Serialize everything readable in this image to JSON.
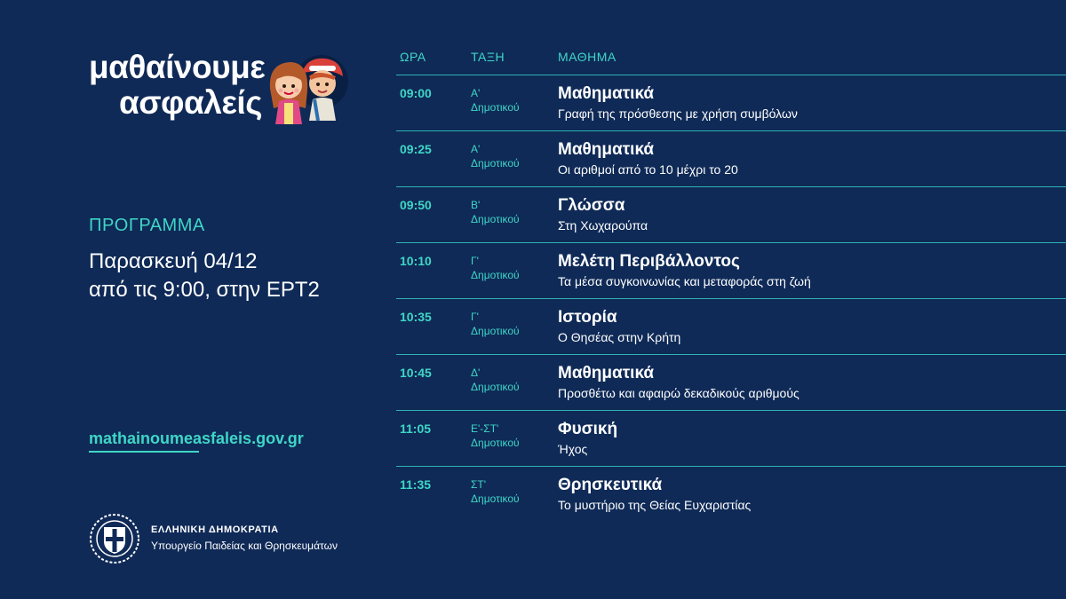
{
  "brand": {
    "logo_line1": "μαθαίνουμε",
    "logo_line2": "ασφαλείς",
    "accent_color": "#3fd6c6",
    "background_color": "#0f2a57"
  },
  "program": {
    "label": "ΠΡΟΓΡΑΜΜΑ",
    "date_line1": "Παρασκευή 04/12",
    "date_line2": "από τις 9:00, στην ΕΡΤ2"
  },
  "website": "mathainoumeasfaleis.gov.gr",
  "government": {
    "title": "ΕΛΛΗΝΙΚΗ ΔΗΜΟΚΡΑΤΙΑ",
    "ministry": "Υπουργείο Παιδείας και Θρησκευμάτων"
  },
  "schedule": {
    "headers": {
      "time": "ΩΡΑ",
      "grade": "ΤΑΞΗ",
      "subject": "ΜΑΘΗΜΑ"
    },
    "rows": [
      {
        "time": "09:00",
        "grade1": "Α'",
        "grade2": "Δημοτικού",
        "subject": "Μαθηματικά",
        "topic": "Γραφή της πρόσθεσης με χρήση συμβόλων"
      },
      {
        "time": "09:25",
        "grade1": "Α'",
        "grade2": "Δημοτικού",
        "subject": "Μαθηματικά",
        "topic": "Οι αριθμοί από το 10 μέχρι το 20"
      },
      {
        "time": "09:50",
        "grade1": "Β'",
        "grade2": "Δημοτικού",
        "subject": "Γλώσσα",
        "topic": "Στη Χωχαρούπα"
      },
      {
        "time": "10:10",
        "grade1": "Γ'",
        "grade2": "Δημοτικού",
        "subject": "Μελέτη Περιβάλλοντος",
        "topic": "Τα μέσα συγκοινωνίας και μεταφοράς στη ζωή"
      },
      {
        "time": "10:35",
        "grade1": "Γ'",
        "grade2": "Δημοτικού",
        "subject": "Ιστορία",
        "topic": "Ο Θησέας στην Κρήτη"
      },
      {
        "time": "10:45",
        "grade1": "Δ'",
        "grade2": "Δημοτικού",
        "subject": "Μαθηματικά",
        "topic": "Προσθέτω και αφαιρώ δεκαδικούς αριθμούς"
      },
      {
        "time": "11:05",
        "grade1": "Ε'-ΣΤ'",
        "grade2": "Δημοτικού",
        "subject": "Φυσική",
        "topic": "Ήχος"
      },
      {
        "time": "11:35",
        "grade1": "ΣΤ'",
        "grade2": "Δημοτικού",
        "subject": "Θρησκευτικά",
        "topic": "Το μυστήριο της Θείας Ευχαριστίας"
      }
    ]
  }
}
